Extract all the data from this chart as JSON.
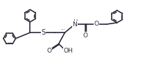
{
  "bg_color": "white",
  "line_color": "#2a2a3a",
  "bond_width": 1.2,
  "font_size": 6.5,
  "figsize": [
    2.22,
    1.07
  ],
  "dpi": 100,
  "ring_r": 0.42,
  "xlim": [
    0.0,
    10.5
  ],
  "ylim": [
    0.5,
    5.2
  ]
}
